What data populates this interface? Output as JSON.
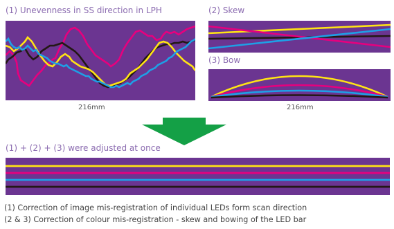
{
  "panel1": {
    "title": "(1) Unevenness in SS direction in LPH",
    "dimension": "216mm"
  },
  "panel2": {
    "title": "(2) Skew"
  },
  "panel3": {
    "title": "(3) Bow",
    "dimension": "216mm"
  },
  "result": {
    "title": "(1) + (2) + (3) were adjusted at once"
  },
  "notes": [
    "(1) Correction of image mis-registration of individual LEDs form scan direction",
    "(2 & 3) Correction of colour mis-registration - skew and bowing of the LED bar"
  ],
  "colors": {
    "background": "#6b3591",
    "yellow": "#ffe414",
    "magenta": "#e6007e",
    "cyan": "#1ea0e6",
    "black": "#231815",
    "arrow": "#14a046",
    "text": "#8b6bb0"
  }
}
